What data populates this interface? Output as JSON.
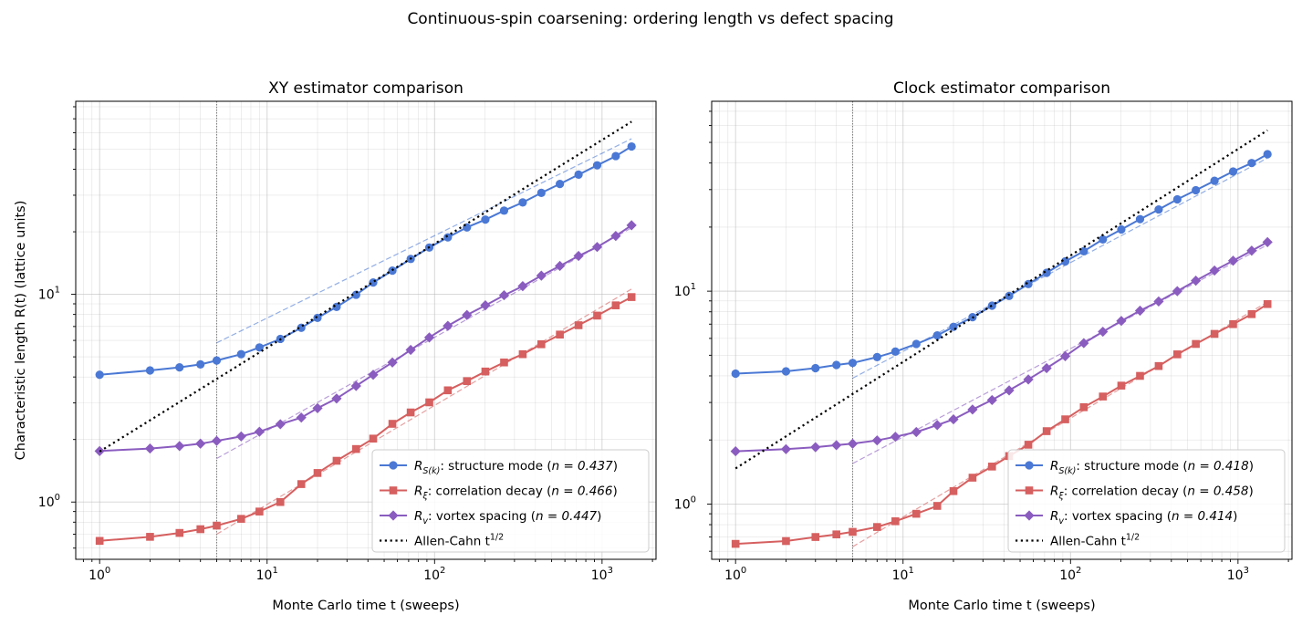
{
  "figure": {
    "suptitle": "Continuous-spin coarsening: ordering length vs defect spacing"
  },
  "chart_data": [
    {
      "type": "line",
      "title": "XY estimator comparison",
      "xlabel": "Monte Carlo time t (sweeps)",
      "ylabel": "Characteristic length R(t) (lattice units)",
      "xscale": "log",
      "yscale": "log",
      "xlim": [
        0.72,
        2100
      ],
      "ylim": [
        0.53,
        85
      ],
      "grid": true,
      "legend_position": "lower right",
      "xticks": [
        "10^0",
        "10^1",
        "10^2",
        "10^3"
      ],
      "yticks": [
        "10^0",
        "10^1"
      ],
      "fit_start_marker_x": 5,
      "x": [
        1,
        2,
        3,
        4,
        5,
        7,
        9,
        12,
        16,
        20,
        26,
        34,
        43,
        56,
        72,
        93,
        120,
        156,
        201,
        260,
        336,
        434,
        560,
        724,
        935,
        1207,
        1500
      ],
      "series": [
        {
          "name": "R_{S(k)}: structure mode  (n = 0.437)",
          "legend_main": "R",
          "legend_sub": "S(k)",
          "legend_rest": ": structure mode  (",
          "legend_n": "n = 0.437",
          "color": "#4a78d4",
          "marker": "circle",
          "values": [
            4.1,
            4.3,
            4.45,
            4.6,
            4.8,
            5.15,
            5.55,
            6.1,
            6.9,
            7.7,
            8.7,
            9.95,
            11.4,
            13.0,
            14.8,
            16.8,
            18.8,
            21.0,
            22.9,
            25.3,
            27.7,
            30.8,
            34.0,
            37.7,
            41.8,
            46.3,
            51.5
          ],
          "fit": {
            "x": [
              5,
              1500
            ],
            "y": [
              5.84,
              56.1
            ]
          }
        },
        {
          "name": "R_ξ: correlation decay  (n = 0.466)",
          "legend_main": "R",
          "legend_sub": "ξ",
          "legend_rest": ": correlation decay  (",
          "legend_n": "n = 0.466",
          "color": "#d65f5f",
          "marker": "square",
          "values": [
            0.65,
            0.68,
            0.71,
            0.74,
            0.77,
            0.83,
            0.9,
            1.0,
            1.22,
            1.38,
            1.58,
            1.8,
            2.02,
            2.38,
            2.7,
            3.02,
            3.45,
            3.82,
            4.25,
            4.7,
            5.15,
            5.75,
            6.4,
            7.1,
            7.9,
            8.85,
            9.7
          ],
          "fit": {
            "x": [
              5,
              1500
            ],
            "y": [
              0.7,
              10.6
            ]
          }
        },
        {
          "name": "R_v: vortex spacing  (n = 0.447)",
          "legend_main": "R",
          "legend_sub": "v",
          "legend_rest": ": vortex spacing  (",
          "legend_n": "n = 0.447",
          "color": "#8a5cbf",
          "marker": "diamond",
          "values": [
            1.76,
            1.81,
            1.86,
            1.91,
            1.97,
            2.07,
            2.18,
            2.37,
            2.55,
            2.83,
            3.15,
            3.62,
            4.1,
            4.7,
            5.4,
            6.2,
            7.05,
            7.95,
            8.85,
            9.9,
            10.95,
            12.3,
            13.7,
            15.3,
            16.9,
            19.1,
            21.5
          ],
          "fit": {
            "x": [
              5,
              1500
            ],
            "y": [
              1.62,
              20.9
            ]
          }
        },
        {
          "name": "Allen-Cahn t^{1/2}",
          "legend_main": "Allen-Cahn t",
          "legend_sup": "1/2",
          "color": "#000000",
          "style": "dotted",
          "x": [
            1,
            1500
          ],
          "values": [
            1.75,
            67.8
          ]
        }
      ]
    },
    {
      "type": "line",
      "title": "Clock estimator comparison",
      "xlabel": "Monte Carlo time t (sweeps)",
      "xscale": "log",
      "yscale": "log",
      "xlim": [
        0.72,
        2100
      ],
      "ylim": [
        0.55,
        78
      ],
      "grid": true,
      "legend_position": "lower right",
      "xticks": [
        "10^0",
        "10^1",
        "10^2",
        "10^3"
      ],
      "yticks": [
        "10^0",
        "10^1"
      ],
      "fit_start_marker_x": 5,
      "x": [
        1,
        2,
        3,
        4,
        5,
        7,
        9,
        12,
        16,
        20,
        26,
        34,
        43,
        56,
        72,
        93,
        120,
        156,
        201,
        260,
        336,
        434,
        560,
        724,
        935,
        1207,
        1500
      ],
      "series": [
        {
          "name": "R_{S(k)}: structure mode  (n = 0.418)",
          "legend_main": "R",
          "legend_sub": "S(k)",
          "legend_rest": ": structure mode  (",
          "legend_n": "n = 0.418",
          "color": "#4a78d4",
          "marker": "circle",
          "values": [
            4.1,
            4.2,
            4.35,
            4.5,
            4.6,
            4.9,
            5.2,
            5.65,
            6.2,
            6.8,
            7.55,
            8.55,
            9.5,
            10.8,
            12.2,
            13.8,
            15.4,
            17.5,
            19.5,
            21.8,
            24.2,
            27.0,
            29.8,
            33.0,
            36.5,
            40.0,
            44.0
          ],
          "fit": {
            "x": [
              5,
              1500
            ],
            "y": [
              3.9,
              42.2
            ]
          }
        },
        {
          "name": "R_ξ: correlation decay  (n = 0.458)",
          "legend_main": "R",
          "legend_sub": "ξ",
          "legend_rest": ": correlation decay  (",
          "legend_n": "n = 0.458",
          "color": "#d65f5f",
          "marker": "square",
          "values": [
            0.65,
            0.67,
            0.7,
            0.72,
            0.74,
            0.78,
            0.83,
            0.9,
            0.98,
            1.15,
            1.33,
            1.5,
            1.68,
            1.9,
            2.2,
            2.5,
            2.85,
            3.2,
            3.6,
            4.0,
            4.45,
            5.05,
            5.65,
            6.3,
            7.0,
            7.8,
            8.7
          ],
          "fit": {
            "x": [
              5,
              1500
            ],
            "y": [
              0.63,
              8.9
            ]
          }
        },
        {
          "name": "R_v: vortex spacing  (n = 0.414)",
          "legend_main": "R",
          "legend_sub": "v",
          "legend_rest": ": vortex spacing  (",
          "legend_n": "n = 0.414",
          "color": "#8a5cbf",
          "marker": "diamond",
          "values": [
            1.77,
            1.81,
            1.85,
            1.89,
            1.92,
            1.99,
            2.07,
            2.18,
            2.35,
            2.5,
            2.78,
            3.08,
            3.42,
            3.85,
            4.35,
            4.95,
            5.7,
            6.45,
            7.25,
            8.1,
            8.95,
            10.0,
            11.2,
            12.5,
            13.9,
            15.5,
            17.0
          ],
          "fit": {
            "x": [
              5,
              1500
            ],
            "y": [
              1.55,
              16.5
            ]
          }
        },
        {
          "name": "Allen-Cahn t^{1/2}",
          "legend_main": "Allen-Cahn t",
          "legend_sup": "1/2",
          "color": "#000000",
          "style": "dotted",
          "x": [
            1,
            1500
          ],
          "values": [
            1.47,
            57.0
          ]
        }
      ]
    }
  ]
}
